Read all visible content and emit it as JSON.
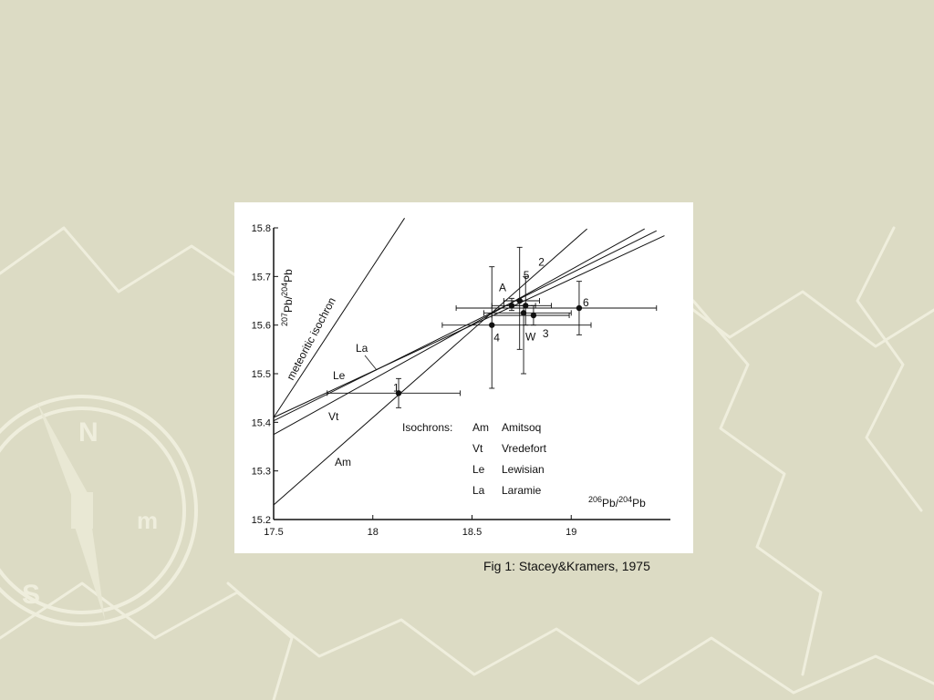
{
  "caption": "Fig 1: Stacey&Kramers, 1975",
  "colors": {
    "background": "#dcdbc4",
    "watermark": "#efeedd",
    "ink": "#111111"
  },
  "chart_data": {
    "type": "scatter",
    "x_axis": {
      "label_parts": [
        "206",
        "Pb",
        "/",
        "204",
        "Pb"
      ],
      "range": [
        17.5,
        19.5
      ],
      "ticks": [
        "17.5",
        "18",
        "18.5",
        "19"
      ],
      "tick_values": [
        17.5,
        18,
        18.5,
        19
      ]
    },
    "y_axis": {
      "label_parts": [
        "207",
        "Pb",
        "/",
        "204",
        "Pb"
      ],
      "range": [
        15.2,
        15.8
      ],
      "ticks": [
        "15.2",
        "15.3",
        "15.4",
        "15.5",
        "15.6",
        "15.7",
        "15.8"
      ],
      "tick_values": [
        15.2,
        15.3,
        15.4,
        15.5,
        15.6,
        15.7,
        15.8
      ]
    },
    "isochrons": [
      {
        "code": "Am",
        "name": "Amitsoq",
        "x1": 17.5,
        "y1": 15.23,
        "x2": 19.08,
        "y2": 15.798
      },
      {
        "code": "Vt",
        "name": "Vredefort",
        "x1": 17.5,
        "y1": 15.375,
        "x2": 19.37,
        "y2": 15.798
      },
      {
        "code": "Le",
        "name": "Lewisian",
        "x1": 17.5,
        "y1": 15.403,
        "x2": 19.43,
        "y2": 15.794
      },
      {
        "code": "La",
        "name": "Laramie",
        "x1": 17.5,
        "y1": 15.41,
        "x2": 19.47,
        "y2": 15.784
      }
    ],
    "meteoritic_isochron": {
      "label": "meteoritic isochron",
      "x1": 17.5,
      "y1": 15.41,
      "x2": 18.16,
      "y2": 15.82
    },
    "isochron_legend_title": "Isochrons:",
    "points": [
      {
        "label": "1",
        "x": 18.13,
        "y": 15.46,
        "xerr": [
          17.77,
          18.44
        ],
        "yerr": [
          15.43,
          15.49
        ]
      },
      {
        "label": "A",
        "x": 18.7,
        "y": 15.64,
        "xerr": [
          18.6,
          18.82
        ],
        "yerr": [
          15.63,
          15.655
        ]
      },
      {
        "label": "5",
        "x": 18.74,
        "y": 15.65,
        "xerr": [
          18.66,
          18.84
        ],
        "yerr": [
          15.55,
          15.76
        ]
      },
      {
        "label": "2",
        "x": 18.77,
        "y": 15.64,
        "xerr": [
          18.66,
          18.9
        ],
        "yerr": [
          15.6,
          15.7
        ]
      },
      {
        "label": "W",
        "x": 18.76,
        "y": 15.625,
        "xerr": [
          18.56,
          19.0
        ],
        "yerr": [
          15.5,
          15.64
        ]
      },
      {
        "label": "3",
        "x": 18.81,
        "y": 15.62,
        "xerr": [
          18.6,
          18.99
        ],
        "yerr": [
          15.6,
          15.64
        ]
      },
      {
        "label": "4",
        "x": 18.6,
        "y": 15.6,
        "xerr": [
          18.35,
          19.1
        ],
        "yerr": [
          15.47,
          15.72
        ]
      },
      {
        "label": "6",
        "x": 19.04,
        "y": 15.635,
        "xerr": [
          18.42,
          19.43
        ],
        "yerr": [
          15.58,
          15.69
        ]
      }
    ],
    "curve_labels": [
      "La",
      "Le",
      "Vt",
      "Am"
    ],
    "grid": false,
    "legend_position": "bottom-center"
  }
}
